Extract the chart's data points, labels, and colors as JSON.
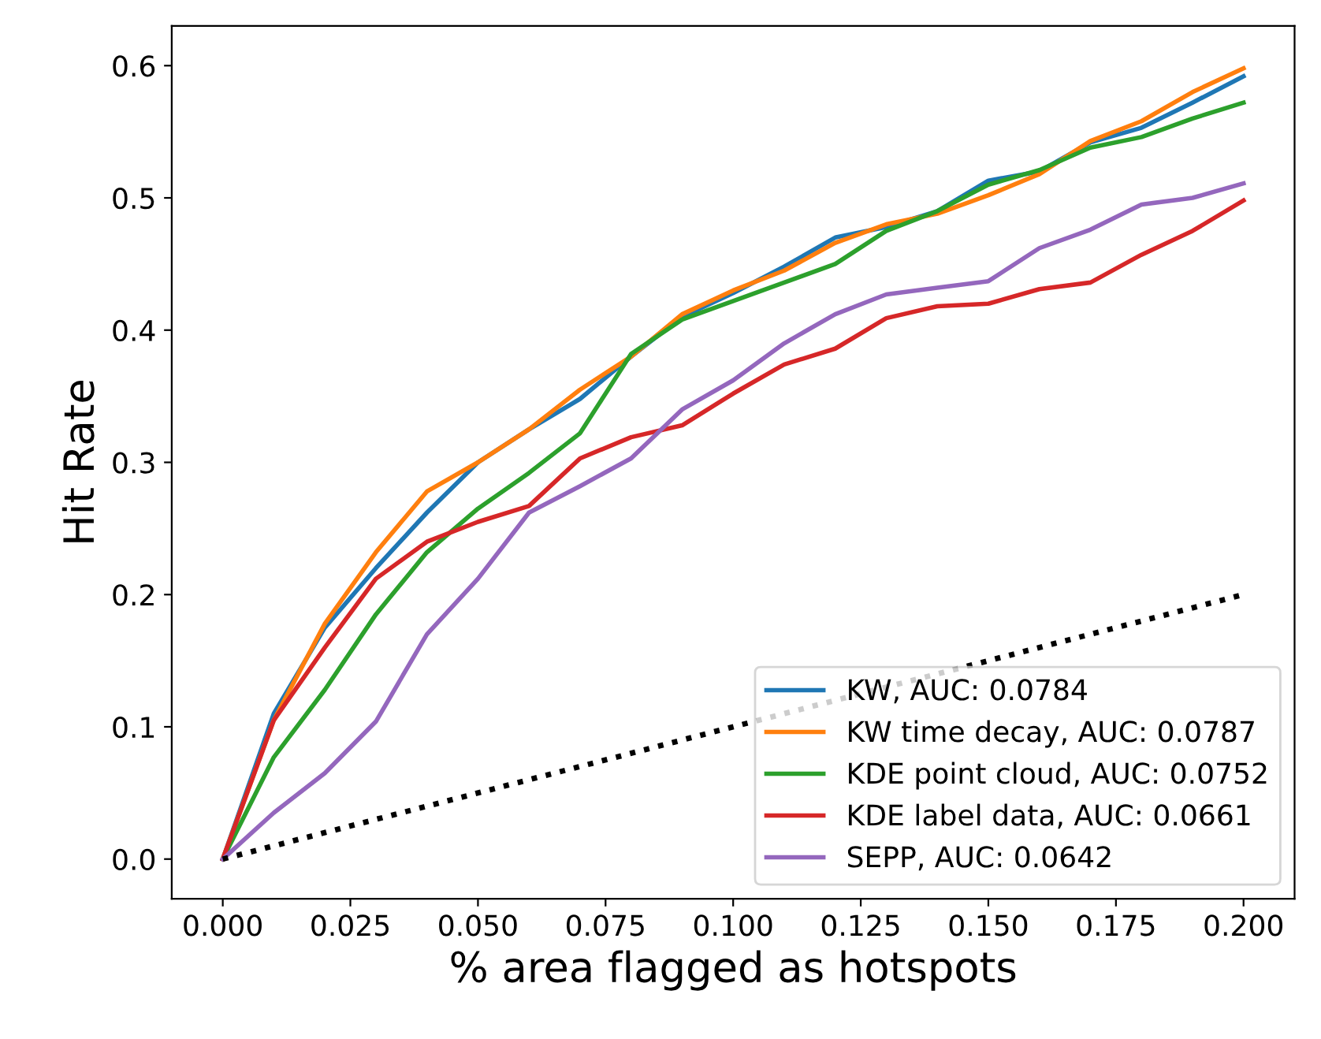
{
  "chart_data": {
    "type": "line",
    "xlabel": "% area flagged as hotspots",
    "ylabel": "Hit Rate",
    "x": [
      0,
      0.01,
      0.02,
      0.03,
      0.04,
      0.05,
      0.06,
      0.07,
      0.08,
      0.09,
      0.1,
      0.11,
      0.12,
      0.13,
      0.14,
      0.15,
      0.16,
      0.17,
      0.18,
      0.19,
      0.2
    ],
    "series": [
      {
        "name": "KW, AUC: 0.0784",
        "color": "#1f77b4",
        "values": [
          0,
          0.11,
          0.175,
          0.22,
          0.262,
          0.3,
          0.325,
          0.348,
          0.38,
          0.41,
          0.428,
          0.448,
          0.47,
          0.478,
          0.49,
          0.513,
          0.52,
          0.542,
          0.553,
          0.572,
          0.592
        ]
      },
      {
        "name": "KW time decay, AUC: 0.0787",
        "color": "#ff7f0e",
        "values": [
          0,
          0.105,
          0.178,
          0.232,
          0.278,
          0.3,
          0.325,
          0.355,
          0.38,
          0.412,
          0.43,
          0.445,
          0.466,
          0.48,
          0.488,
          0.502,
          0.518,
          0.543,
          0.558,
          0.58,
          0.598
        ]
      },
      {
        "name": "KDE point cloud, AUC: 0.0752",
        "color": "#2ca02c",
        "values": [
          0,
          0.077,
          0.128,
          0.185,
          0.232,
          0.265,
          0.292,
          0.322,
          0.382,
          0.408,
          0.422,
          0.436,
          0.45,
          0.475,
          0.49,
          0.51,
          0.521,
          0.538,
          0.546,
          0.56,
          0.572
        ]
      },
      {
        "name": "KDE label data, AUC: 0.0661",
        "color": "#d62728",
        "values": [
          0,
          0.105,
          0.16,
          0.212,
          0.24,
          0.255,
          0.267,
          0.303,
          0.319,
          0.328,
          0.352,
          0.374,
          0.386,
          0.409,
          0.418,
          0.42,
          0.431,
          0.436,
          0.457,
          0.475,
          0.498
        ]
      },
      {
        "name": "SEPP, AUC: 0.0642",
        "color": "#9467bd",
        "values": [
          0,
          0.035,
          0.065,
          0.104,
          0.17,
          0.212,
          0.262,
          0.282,
          0.303,
          0.34,
          0.362,
          0.39,
          0.412,
          0.427,
          0.432,
          0.437,
          0.462,
          0.476,
          0.495,
          0.5,
          0.511
        ]
      },
      {
        "color": "#000000",
        "line_style": "dotted",
        "x": [
          0,
          0.2
        ],
        "values": [
          0,
          0.2
        ]
      }
    ],
    "xlim": [
      -0.01,
      0.21
    ],
    "ylim": [
      -0.03,
      0.63
    ],
    "xticks": [
      {
        "value": 0,
        "label": "0.000"
      },
      {
        "value": 0.025,
        "label": "0.025"
      },
      {
        "value": 0.05,
        "label": "0.050"
      },
      {
        "value": 0.075,
        "label": "0.075"
      },
      {
        "value": 0.1,
        "label": "0.100"
      },
      {
        "value": 0.125,
        "label": "0.125"
      },
      {
        "value": 0.15,
        "label": "0.150"
      },
      {
        "value": 0.175,
        "label": "0.175"
      },
      {
        "value": 0.2,
        "label": "0.200"
      }
    ],
    "yticks": [
      {
        "value": 0,
        "label": "0.0"
      },
      {
        "value": 0.1,
        "label": "0.1"
      },
      {
        "value": 0.2,
        "label": "0.2"
      },
      {
        "value": 0.3,
        "label": "0.3"
      },
      {
        "value": 0.4,
        "label": "0.4"
      },
      {
        "value": 0.5,
        "label": "0.5"
      },
      {
        "value": 0.6,
        "label": "0.6"
      }
    ],
    "grid": false,
    "legend": "bottom right"
  }
}
